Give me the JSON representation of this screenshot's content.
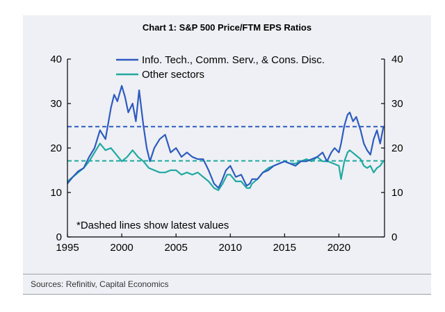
{
  "title": "Chart 1: S&P 500 Price/FTM EPS Ratios",
  "source": "Sources: Refinitiv, Capital Economics",
  "note": "*Dashed lines show latest values",
  "chart_data": {
    "type": "line",
    "title": "Chart 1: S&P 500 Price/FTM EPS Ratios",
    "xlabel": "",
    "ylabel": "",
    "xlim": [
      1995,
      2024.2
    ],
    "ylim": [
      0,
      40
    ],
    "x_ticks": [
      1995,
      2000,
      2005,
      2010,
      2015,
      2020
    ],
    "y_ticks": [
      0,
      10,
      20,
      30,
      40
    ],
    "grid": false,
    "legend_position": "top",
    "series": [
      {
        "name": "Info. Tech., Comm. Serv., & Cons. Disc.",
        "color": "#2e5bbf",
        "x": [
          1995,
          1995.5,
          1996,
          1996.5,
          1997,
          1997.5,
          1998,
          1998.5,
          1999,
          1999.3,
          1999.6,
          2000,
          2000.3,
          2000.6,
          2001,
          2001.3,
          2001.6,
          2001.8,
          2002,
          2002.3,
          2002.6,
          2003,
          2003.5,
          2004,
          2004.5,
          2005,
          2005.5,
          2006,
          2006.5,
          2007,
          2007.5,
          2008,
          2008.5,
          2008.9,
          2009.2,
          2009.6,
          2010,
          2010.5,
          2011,
          2011.5,
          2011.8,
          2012,
          2012.5,
          2013,
          2013.5,
          2014,
          2014.5,
          2015,
          2015.5,
          2016,
          2016.5,
          2017,
          2017.5,
          2018,
          2018.5,
          2018.9,
          2019.3,
          2019.6,
          2020,
          2020.2,
          2020.5,
          2020.8,
          2021,
          2021.3,
          2021.6,
          2022,
          2022.3,
          2022.6,
          2022.9,
          2023.2,
          2023.5,
          2023.8,
          2024.1
        ],
        "y": [
          12,
          13.5,
          14.8,
          15.5,
          18,
          20,
          24,
          22,
          29,
          32,
          30.5,
          34,
          31.5,
          28,
          30,
          26,
          33,
          29,
          25,
          20,
          17,
          20,
          22,
          23,
          19,
          20,
          18,
          19,
          18,
          17.5,
          17.5,
          15,
          12,
          11,
          12.5,
          15,
          16,
          13.5,
          14,
          11.5,
          12,
          13,
          13,
          14.5,
          15,
          16,
          16.5,
          17,
          16.5,
          16,
          17,
          17,
          17.5,
          18,
          19,
          17,
          19,
          20,
          19,
          21,
          25,
          27.5,
          28,
          26,
          27,
          24,
          21,
          19.5,
          18.5,
          22,
          24,
          21,
          24.8
        ]
      },
      {
        "name": "Other sectors",
        "color": "#1fa9a0",
        "x": [
          1995,
          1995.5,
          1996,
          1996.5,
          1997,
          1997.5,
          1998,
          1998.5,
          1999,
          1999.5,
          2000,
          2000.5,
          2001,
          2001.5,
          2002,
          2002.5,
          2003,
          2003.5,
          2004,
          2004.5,
          2005,
          2005.5,
          2006,
          2006.5,
          2007,
          2007.5,
          2008,
          2008.5,
          2008.9,
          2009.3,
          2009.7,
          2010,
          2010.5,
          2011,
          2011.5,
          2011.8,
          2012,
          2012.5,
          2013,
          2013.5,
          2014,
          2014.5,
          2015,
          2015.5,
          2016,
          2016.5,
          2017,
          2017.5,
          2018,
          2018.5,
          2019,
          2019.5,
          2020,
          2020.2,
          2020.5,
          2020.8,
          2021,
          2021.5,
          2022,
          2022.3,
          2022.6,
          2022.9,
          2023.2,
          2023.5,
          2023.8,
          2024.1
        ],
        "y": [
          12.5,
          13.5,
          14.5,
          15.5,
          17,
          19,
          21,
          19.5,
          20,
          18.5,
          17,
          18,
          19.5,
          18,
          17,
          15.5,
          15,
          14.5,
          14.5,
          15,
          15,
          14,
          14.5,
          14,
          14.5,
          13.5,
          12.5,
          11,
          10.5,
          12,
          14,
          14,
          12.5,
          12.5,
          11,
          11,
          12,
          13,
          14.5,
          15.5,
          16,
          16.5,
          17,
          16.5,
          16.5,
          17,
          17.5,
          17,
          18,
          17,
          17,
          16.5,
          16,
          13,
          17,
          19,
          19.5,
          18.5,
          17.5,
          16,
          15.5,
          16,
          14.5,
          15.5,
          16,
          17.1
        ]
      }
    ],
    "reference_lines": [
      {
        "series": "Info. Tech., Comm. Serv., & Cons. Disc.",
        "value": 24.8,
        "style": "dashed",
        "color": "#2e5bbf"
      },
      {
        "series": "Other sectors",
        "value": 17.1,
        "style": "dashed",
        "color": "#1fa9a0"
      }
    ]
  }
}
